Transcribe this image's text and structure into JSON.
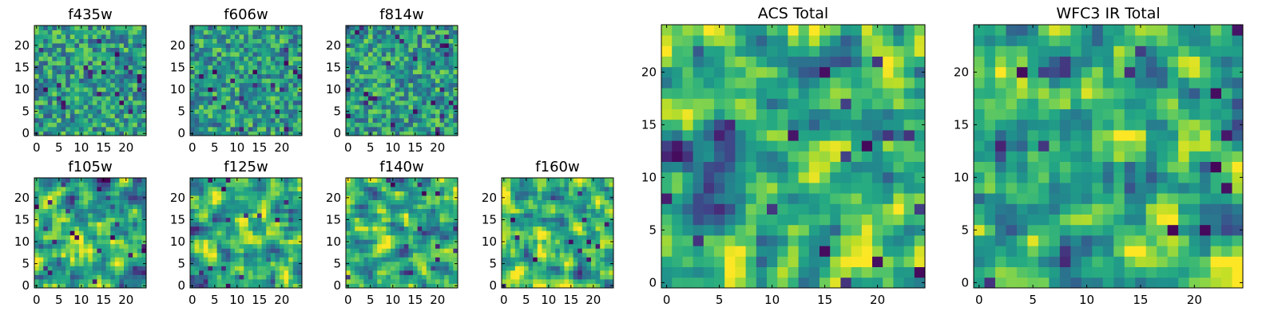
{
  "colors": {
    "background": "#ffffff",
    "frame": "#000000"
  },
  "colormap": "viridis",
  "chart_data": [
    {
      "type": "heatmap",
      "title": "f435w",
      "rows": 25,
      "cols": 25,
      "xticks": [
        0,
        5,
        10,
        15,
        20
      ],
      "yticks": [
        0,
        5,
        10,
        15,
        20
      ],
      "xlim": [
        -0.5,
        24.5
      ],
      "ylim": [
        -0.5,
        24.5
      ]
    },
    {
      "type": "heatmap",
      "title": "f606w",
      "rows": 25,
      "cols": 25,
      "xticks": [
        0,
        5,
        10,
        15,
        20
      ],
      "yticks": [
        0,
        5,
        10,
        15,
        20
      ],
      "xlim": [
        -0.5,
        24.5
      ],
      "ylim": [
        -0.5,
        24.5
      ]
    },
    {
      "type": "heatmap",
      "title": "f814w",
      "rows": 25,
      "cols": 25,
      "xticks": [
        0,
        5,
        10,
        15,
        20
      ],
      "yticks": [
        0,
        5,
        10,
        15,
        20
      ],
      "xlim": [
        -0.5,
        24.5
      ],
      "ylim": [
        -0.5,
        24.5
      ]
    },
    {
      "type": "heatmap",
      "title": "f105w",
      "rows": 25,
      "cols": 25,
      "xticks": [
        0,
        5,
        10,
        15,
        20
      ],
      "yticks": [
        0,
        5,
        10,
        15,
        20
      ],
      "xlim": [
        -0.5,
        24.5
      ],
      "ylim": [
        -0.5,
        24.5
      ]
    },
    {
      "type": "heatmap",
      "title": "f125w",
      "rows": 25,
      "cols": 25,
      "xticks": [
        0,
        5,
        10,
        15,
        20
      ],
      "yticks": [
        0,
        5,
        10,
        15,
        20
      ],
      "xlim": [
        -0.5,
        24.5
      ],
      "ylim": [
        -0.5,
        24.5
      ]
    },
    {
      "type": "heatmap",
      "title": "f140w",
      "rows": 25,
      "cols": 25,
      "xticks": [
        0,
        5,
        10,
        15,
        20
      ],
      "yticks": [
        0,
        5,
        10,
        15,
        20
      ],
      "xlim": [
        -0.5,
        24.5
      ],
      "ylim": [
        -0.5,
        24.5
      ]
    },
    {
      "type": "heatmap",
      "title": "f160w",
      "rows": 25,
      "cols": 25,
      "xticks": [
        0,
        5,
        10,
        15,
        20
      ],
      "yticks": [
        0,
        5,
        10,
        15,
        20
      ],
      "xlim": [
        -0.5,
        24.5
      ],
      "ylim": [
        -0.5,
        24.5
      ]
    },
    {
      "type": "heatmap",
      "title": "ACS Total",
      "rows": 25,
      "cols": 25,
      "xticks": [
        0,
        5,
        10,
        15,
        20
      ],
      "yticks": [
        0,
        5,
        10,
        15,
        20
      ],
      "xlim": [
        -0.5,
        24.5
      ],
      "ylim": [
        -0.5,
        24.5
      ]
    },
    {
      "type": "heatmap",
      "title": "WFC3 IR Total",
      "rows": 25,
      "cols": 25,
      "xticks": [
        0,
        5,
        10,
        15,
        20
      ],
      "yticks": [
        0,
        5,
        10,
        15,
        20
      ],
      "xlim": [
        -0.5,
        24.5
      ],
      "ylim": [
        -0.5,
        24.5
      ]
    }
  ]
}
